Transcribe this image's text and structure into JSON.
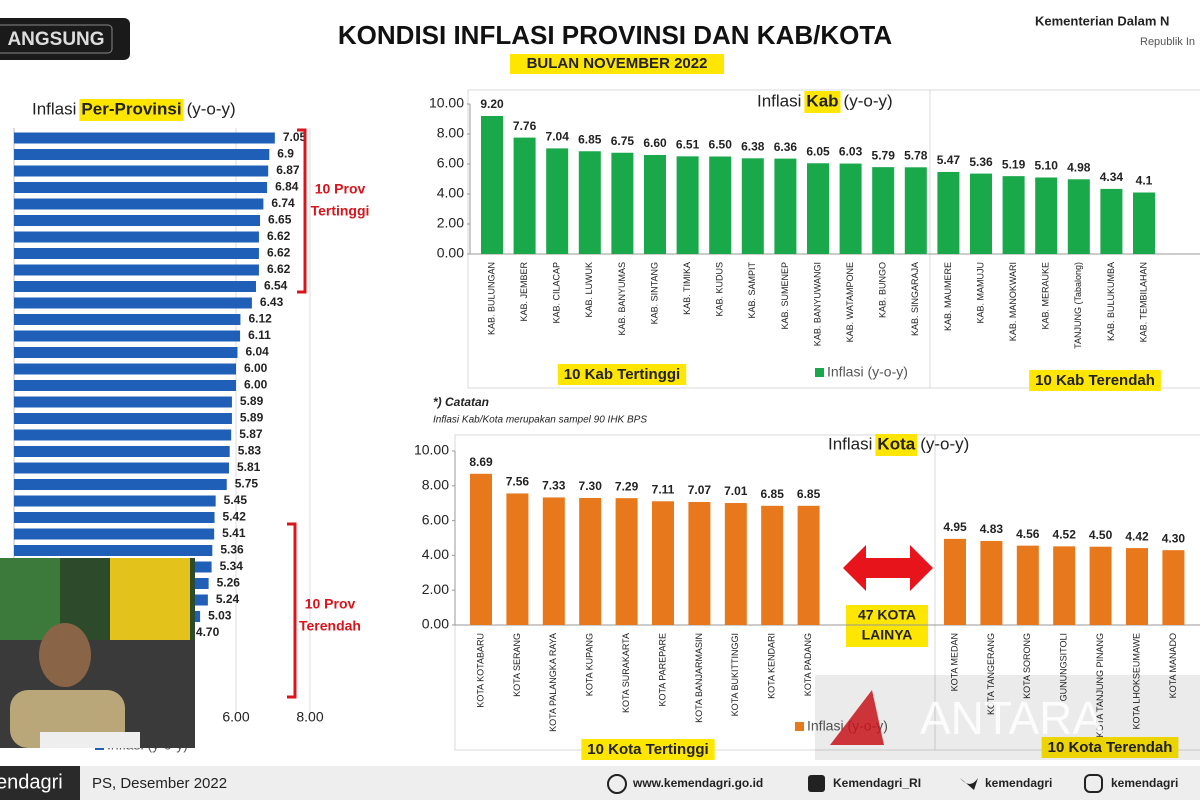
{
  "header": {
    "badge": "ANGSUNG",
    "title": "KONDISI INFLASI PROVINSI DAN KAB/KOTA",
    "subtitle": "BULAN NOVEMBER 2022",
    "org": "Kementerian Dalam N",
    "org_sub": "Republik In"
  },
  "note": {
    "title": "*) Catatan",
    "text": "Inflasi Kab/Kota merupakan sampel 90 IHK BPS"
  },
  "middle_annotation": [
    "47 KOTA",
    "LAINYA"
  ],
  "footer": {
    "speaker": "endagri",
    "source": "PS, Desember 2022",
    "website": "www.kemendagri.go.id",
    "facebook": "Kemendagri_RI",
    "twitter": "kemendagri",
    "instagram": "kemendagri"
  },
  "watermark": "ANTARA",
  "chart_data": [
    {
      "type": "bar",
      "orientation": "horizontal",
      "title": [
        "Inflasi",
        "Per-Provinsi",
        "(y-o-y)"
      ],
      "categories": [
        null,
        null,
        null,
        null,
        null,
        null,
        null,
        null,
        null,
        null,
        null,
        null,
        null,
        null,
        null,
        null,
        null,
        null,
        null,
        null,
        null,
        null,
        null,
        null,
        null,
        null,
        null,
        null,
        null,
        null,
        null
      ],
      "series": [
        {
          "name": "Inflasi (y-o-y)",
          "color": "#1f5fb8",
          "values": [
            7.05,
            6.9,
            6.87,
            6.84,
            6.74,
            6.65,
            6.62,
            6.62,
            6.62,
            6.54,
            6.43,
            6.12,
            6.11,
            6.04,
            6.0,
            6.0,
            5.89,
            5.89,
            5.87,
            5.83,
            5.81,
            5.75,
            5.45,
            5.42,
            5.41,
            5.36,
            5.34,
            5.26,
            5.24,
            5.03,
            4.7
          ],
          "value_labels": [
            "7.05",
            "6.9",
            "6.87",
            "6.84",
            "6.74",
            "6.65",
            "6.62",
            "6.62",
            "6.62",
            "6.54",
            "6.43",
            "6.12",
            "6.11",
            "6.04",
            "6.00",
            "6.00",
            "5.89",
            "5.89",
            "5.87",
            "5.83",
            "5.81",
            "5.75",
            "5.45",
            "5.42",
            "5.41",
            "5.36",
            "5.34",
            "5.26",
            "5.24",
            "5.03",
            "4.70"
          ]
        }
      ],
      "xlim": [
        0,
        8
      ],
      "xticks": [
        {
          "value": 6,
          "label": "6.00"
        },
        {
          "value": 8,
          "label": "8.00"
        }
      ],
      "grid": true,
      "annotations": [
        [
          "10 Prov",
          "Tertinggi"
        ],
        [
          "10 Prov",
          "Terendah"
        ]
      ]
    },
    {
      "type": "bar",
      "orientation": "vertical",
      "title": [
        "Inflasi",
        "Kab",
        "(y-o-y)"
      ],
      "categories": [
        "KAB. BULUNGAN",
        "KAB. JEMBER",
        "KAB. CILACAP",
        "KAB. LUWUK",
        "KAB. BANYUMAS",
        "KAB. SINTANG",
        "KAB. TIMIKA",
        "KAB. KUDUS",
        "KAB. SAMPIT",
        "KAB. SUMENEP",
        "KAB. BANYUWANGI",
        "KAB. WATAMPONE",
        "KAB. BUNGO",
        "KAB. SINGARAJA",
        "KAB. MAUMERE",
        "KAB. MAMUJU",
        "KAB. MANOKWARI",
        "KAB. MERAUKE",
        "TANJUNG (Tabalong)",
        "KAB. BULUKUMBA",
        "KAB. TEMBILAHAN"
      ],
      "series": [
        {
          "name": "Inflasi (y-o-y)",
          "color": "#19a84a",
          "values": [
            9.2,
            7.76,
            7.04,
            6.85,
            6.75,
            6.6,
            6.51,
            6.5,
            6.38,
            6.36,
            6.05,
            6.03,
            5.79,
            5.78,
            5.47,
            5.36,
            5.19,
            5.1,
            4.98,
            4.34,
            4.1
          ],
          "value_labels": [
            "9.20",
            "7.76",
            "7.04",
            "6.85",
            "6.75",
            "6.60",
            "6.51",
            "6.50",
            "6.38",
            "6.36",
            "6.05",
            "6.03",
            "5.79",
            "5.78",
            "5.47",
            "5.36",
            "5.19",
            "5.10",
            "4.98",
            "4.34",
            "4.1"
          ]
        }
      ],
      "ylim": [
        0,
        10
      ],
      "yticks": [
        {
          "value": 0,
          "label": "0.00"
        },
        {
          "value": 2,
          "label": "2.00"
        },
        {
          "value": 4,
          "label": "4.00"
        },
        {
          "value": 6,
          "label": "6.00"
        },
        {
          "value": 8,
          "label": "8.00"
        },
        {
          "value": 10,
          "label": "10.00"
        }
      ],
      "annotations": [
        [
          "10 Kab Tertinggi"
        ],
        [
          "10 Kab Terendah"
        ]
      ]
    },
    {
      "type": "bar",
      "orientation": "vertical",
      "title": [
        "Inflasi",
        "Kota",
        "(y-o-y)"
      ],
      "categories": [
        "KOTA KOTABARU",
        "KOTA SERANG",
        "KOTA PALANGKA RAYA",
        "KOTA KUPANG",
        "KOTA SURAKARTA",
        "KOTA PAREPARE",
        "KOTA BANJARMASIN",
        "KOTA BUKITTINGGI",
        "KOTA KENDARI",
        "KOTA PADANG",
        "KOTA MEDAN",
        "KOTA TANGERANG",
        "KOTA SORONG",
        "GUNUNGSITOLI",
        "KOTA TANJUNG PINANG",
        "KOTA LHOKSEUMAWE",
        "KOTA MANADO"
      ],
      "series": [
        {
          "name": "Inflasi (y-o-y)",
          "color": "#e8781c",
          "values": [
            8.69,
            7.56,
            7.33,
            7.3,
            7.29,
            7.11,
            7.07,
            7.01,
            6.85,
            6.85,
            4.95,
            4.83,
            4.56,
            4.52,
            4.5,
            4.42,
            4.3
          ],
          "value_labels": [
            "8.69",
            "7.56",
            "7.33",
            "7.30",
            "7.29",
            "7.11",
            "7.07",
            "7.01",
            "6.85",
            "6.85",
            "4.95",
            "4.83",
            "4.56",
            "4.52",
            "4.50",
            "4.42",
            "4.30"
          ]
        }
      ],
      "ylim": [
        0,
        10
      ],
      "yticks": [
        {
          "value": 0,
          "label": "0.00"
        },
        {
          "value": 2,
          "label": "2.00"
        },
        {
          "value": 4,
          "label": "4.00"
        },
        {
          "value": 6,
          "label": "6.00"
        },
        {
          "value": 8,
          "label": "8.00"
        },
        {
          "value": 10,
          "label": "10.00"
        }
      ],
      "annotations": [
        [
          "10 Kota Tertinggi"
        ],
        [
          "10 Kota Terendah"
        ]
      ]
    }
  ]
}
